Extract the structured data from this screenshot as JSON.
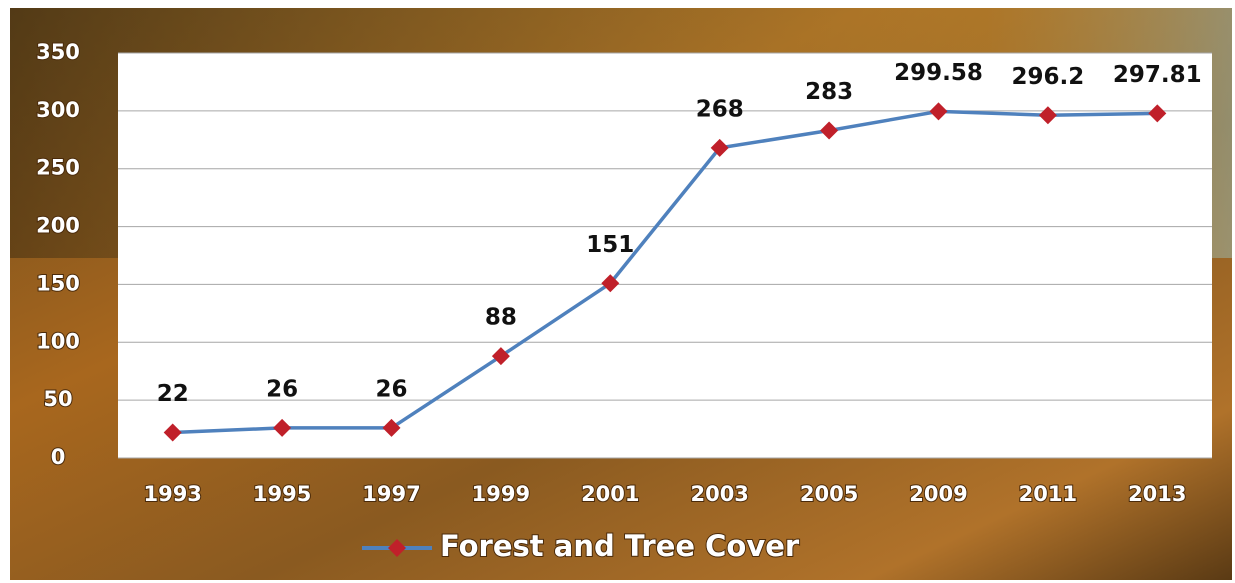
{
  "chart_data": {
    "type": "line",
    "categories": [
      "1993",
      "1995",
      "1997",
      "1999",
      "2001",
      "2003",
      "2005",
      "2009",
      "2011",
      "2013"
    ],
    "series": [
      {
        "name": "Forest  and Tree Cover",
        "color": "#4f81bd",
        "marker_color": "#c0202a",
        "values": [
          22,
          26,
          26,
          88,
          151,
          268,
          283,
          299.58,
          296.2,
          297.81
        ]
      }
    ],
    "ylim": [
      0,
      350
    ],
    "yticks": [
      0,
      50,
      100,
      150,
      200,
      250,
      300,
      350
    ],
    "grid": true,
    "legend": "bottom"
  }
}
